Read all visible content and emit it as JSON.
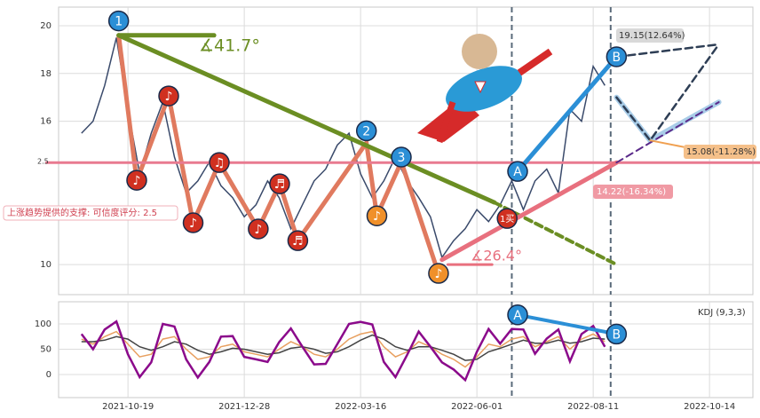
{
  "chart_data": [
    {
      "type": "line",
      "categories": [
        null,
        null,
        null,
        null,
        null,
        null,
        "2021-10-19",
        null,
        null,
        null,
        null,
        null,
        null,
        null,
        null,
        null,
        "2021-12-28",
        null,
        null,
        null,
        null,
        null,
        null,
        null,
        null,
        null,
        "2022-03-16",
        null,
        null,
        null,
        null,
        null,
        null,
        null,
        null,
        null,
        "2022-06-01",
        null,
        null,
        null,
        null,
        null,
        null,
        null,
        null,
        null,
        "2022-08-11",
        null,
        null,
        null,
        null,
        null,
        null,
        null,
        null,
        null,
        "2022-10-14",
        null,
        null,
        null
      ],
      "values": [
        null,
        null,
        15.5,
        16.0,
        17.5,
        19.5,
        16.5,
        13.8,
        15.5,
        16.8,
        14.5,
        13.0,
        13.5,
        14.3,
        13.3,
        12.8,
        12.0,
        12.5,
        13.5,
        12.8,
        11.5,
        12.5,
        13.5,
        14.0,
        15.0,
        15.5,
        13.8,
        12.8,
        13.5,
        14.5,
        13.5,
        12.8,
        12.0,
        10.3,
        11.0,
        11.5,
        12.3,
        11.8,
        12.5,
        13.5,
        12.3,
        13.5,
        14.0,
        13.0,
        16.5,
        16.0,
        18.3,
        17.5,
        null,
        null,
        null,
        null,
        null,
        null,
        null,
        null,
        null,
        null,
        null,
        null
      ],
      "color": "#3a4a6b",
      "ylim": [
        8.74,
        20.78
      ],
      "yticks": [
        10,
        16,
        18,
        20
      ],
      "grid": true,
      "vlines": [
        39,
        47.5
      ],
      "lines": [
        {
          "color": "#e07a5f",
          "width": 5,
          "dash": false,
          "points": [
            [
              5.2,
              19.6
            ],
            [
              6.75,
              13.5
            ],
            [
              9.5,
              17.06
            ],
            [
              11.6,
              11.75
            ],
            [
              13.85,
              14.27
            ],
            [
              17.2,
              11.49
            ],
            [
              19.04,
              13.38
            ],
            [
              20.6,
              11.0
            ],
            [
              26.5,
              15.1
            ],
            [
              27.4,
              12.04
            ],
            [
              29.5,
              14.3
            ],
            [
              32.7,
              9.63
            ]
          ]
        },
        {
          "color": "#e87a90",
          "width": 3,
          "dash": false,
          "points": [
            [
              -1,
              14.27
            ],
            [
              61,
              14.27
            ]
          ]
        },
        {
          "color": "#6b8e23",
          "width": 5,
          "dash": false,
          "points": [
            [
              5.2,
              19.6
            ],
            [
              37.5,
              12.6
            ]
          ]
        },
        {
          "color": "#6b8e23",
          "width": 4,
          "dash": true,
          "points": [
            [
              37.5,
              12.6
            ],
            [
              48,
              10.0
            ]
          ]
        },
        {
          "color": "#6b8e23",
          "width": 5,
          "dash": false,
          "points": [
            [
              5.2,
              19.6
            ],
            [
              13.4,
              19.6
            ]
          ]
        },
        {
          "color": "#e8707e",
          "width": 5,
          "dash": false,
          "points": [
            [
              33,
              10.2
            ],
            [
              48,
              14.27
            ]
          ]
        },
        {
          "color": "#e8707e",
          "width": 3,
          "dash": false,
          "points": [
            [
              33.5,
              10.0
            ],
            [
              37.3,
              10.0
            ]
          ]
        },
        {
          "color": "#2b8fd6",
          "width": 5,
          "dash": false,
          "points": [
            [
              39.5,
              13.9
            ],
            [
              48,
              18.7
            ]
          ]
        },
        {
          "color": "#a9cde8",
          "width": 6,
          "dash": false,
          "points": [
            [
              48,
              17.0
            ],
            [
              50.9,
              15.2
            ],
            [
              56.8,
              16.8
            ]
          ]
        },
        {
          "color": "#2e3e55",
          "width": 2.5,
          "dash": true,
          "points": [
            [
              48,
              18.7
            ],
            [
              56.8,
              19.22
            ]
          ]
        },
        {
          "color": "#2e3e55",
          "width": 2.5,
          "dash": true,
          "points": [
            [
              48,
              17.0
            ],
            [
              50.9,
              15.2
            ],
            [
              56.8,
              19.22
            ]
          ]
        },
        {
          "color": "#5a2a8a",
          "width": 2,
          "dash": true,
          "points": [
            [
              48,
              14.27
            ],
            [
              56.8,
              16.8
            ]
          ]
        },
        {
          "color": "#f0a050",
          "width": 2,
          "dash": false,
          "points": [
            [
              50.9,
              15.2
            ],
            [
              54,
              14.9
            ]
          ]
        }
      ],
      "markers": [
        {
          "label": "1",
          "x": 5.2,
          "y": 20.2,
          "color": "#2b8fd6"
        },
        {
          "label": "2",
          "x": 26.5,
          "y": 15.6,
          "color": "#2b8fd6"
        },
        {
          "label": "3",
          "x": 29.5,
          "y": 14.5,
          "color": "#2b8fd6"
        },
        {
          "label": "A",
          "x": 39.5,
          "y": 13.9,
          "color": "#2b8fd6"
        },
        {
          "label": "B",
          "x": 48,
          "y": 18.7,
          "color": "#2b8fd6"
        },
        {
          "label": "♪",
          "x": 6.75,
          "y": 13.53,
          "color": "#d03020"
        },
        {
          "label": "♪",
          "x": 9.5,
          "y": 17.06,
          "color": "#d03020"
        },
        {
          "label": "♫",
          "x": 13.85,
          "y": 14.27,
          "color": "#d03020"
        },
        {
          "label": "♪",
          "x": 11.6,
          "y": 11.75,
          "color": "#d03020"
        },
        {
          "label": "♪",
          "x": 17.2,
          "y": 11.49,
          "color": "#d03020"
        },
        {
          "label": "♬",
          "x": 19.04,
          "y": 13.38,
          "color": "#d03020"
        },
        {
          "label": "♬",
          "x": 20.6,
          "y": 11.0,
          "color": "#d03020"
        },
        {
          "label": "♪",
          "x": 27.4,
          "y": 12.04,
          "color": "#f0902a"
        },
        {
          "label": "♪",
          "x": 32.7,
          "y": 9.63,
          "color": "#f0902a"
        },
        {
          "label": "1买",
          "x": 38.6,
          "y": 11.93,
          "color": "#d03020"
        }
      ],
      "labels": [
        "19.15(12.64%)",
        "15.08(-11.28%)",
        "14.22(-16.34%)",
        "∡41.7°",
        "∡26.4°",
        "上涨趋势提供的支撑: 可信度评分: 2.5",
        "2.5"
      ]
    },
    {
      "type": "line",
      "title": "KDJ (9,3,3)",
      "series": [
        {
          "color": "#e8a060",
          "values": [
            null,
            null,
            70,
            60,
            75,
            85,
            60,
            35,
            40,
            70,
            75,
            50,
            30,
            35,
            55,
            60,
            45,
            40,
            35,
            50,
            65,
            55,
            40,
            35,
            50,
            70,
            80,
            85,
            55,
            35,
            45,
            65,
            55,
            40,
            30,
            15,
            35,
            60,
            55,
            70,
            75,
            55,
            65,
            75,
            50,
            70,
            80,
            65,
            null,
            null,
            null,
            null,
            null,
            null,
            null,
            null,
            null,
            null,
            null,
            null
          ]
        },
        {
          "color": "#444444",
          "values": [
            null,
            null,
            65,
            65,
            68,
            75,
            70,
            55,
            48,
            55,
            65,
            60,
            48,
            40,
            45,
            52,
            50,
            45,
            40,
            43,
            52,
            55,
            50,
            42,
            45,
            55,
            68,
            78,
            70,
            55,
            48,
            55,
            55,
            48,
            40,
            28,
            30,
            45,
            52,
            60,
            68,
            62,
            62,
            68,
            62,
            65,
            72,
            70,
            null,
            null,
            null,
            null,
            null,
            null,
            null,
            null,
            null,
            null,
            null,
            null
          ]
        },
        {
          "color": "#8b0a8b",
          "values": [
            null,
            null,
            80,
            50,
            89,
            105,
            40,
            -5,
            24,
            100,
            95,
            30,
            -6,
            25,
            75,
            76,
            35,
            30,
            25,
            64,
            91,
            55,
            20,
            21,
            60,
            100,
            104,
            99,
            25,
            -5,
            39,
            85,
            55,
            24,
            10,
            -11,
            45,
            90,
            61,
            90,
            89,
            41,
            71,
            89,
            26,
            80,
            96,
            55,
            null,
            null,
            null,
            null,
            null,
            null,
            null,
            null,
            null,
            null,
            null,
            null
          ]
        }
      ],
      "ylim": [
        -45.6,
        143.9
      ],
      "yticks": [
        0,
        50,
        100
      ],
      "grid": true,
      "vlines": [
        39,
        47.5
      ],
      "lines": [
        {
          "color": "#2b8fd6",
          "width": 4,
          "dash": false,
          "points": [
            [
              39.5,
              118
            ],
            [
              48,
              80
            ]
          ]
        }
      ],
      "markers": [
        {
          "label": "A",
          "x": 39.5,
          "y": 118,
          "color": "#2b8fd6"
        },
        {
          "label": "B",
          "x": 48,
          "y": 80,
          "color": "#2b8fd6"
        }
      ]
    }
  ]
}
